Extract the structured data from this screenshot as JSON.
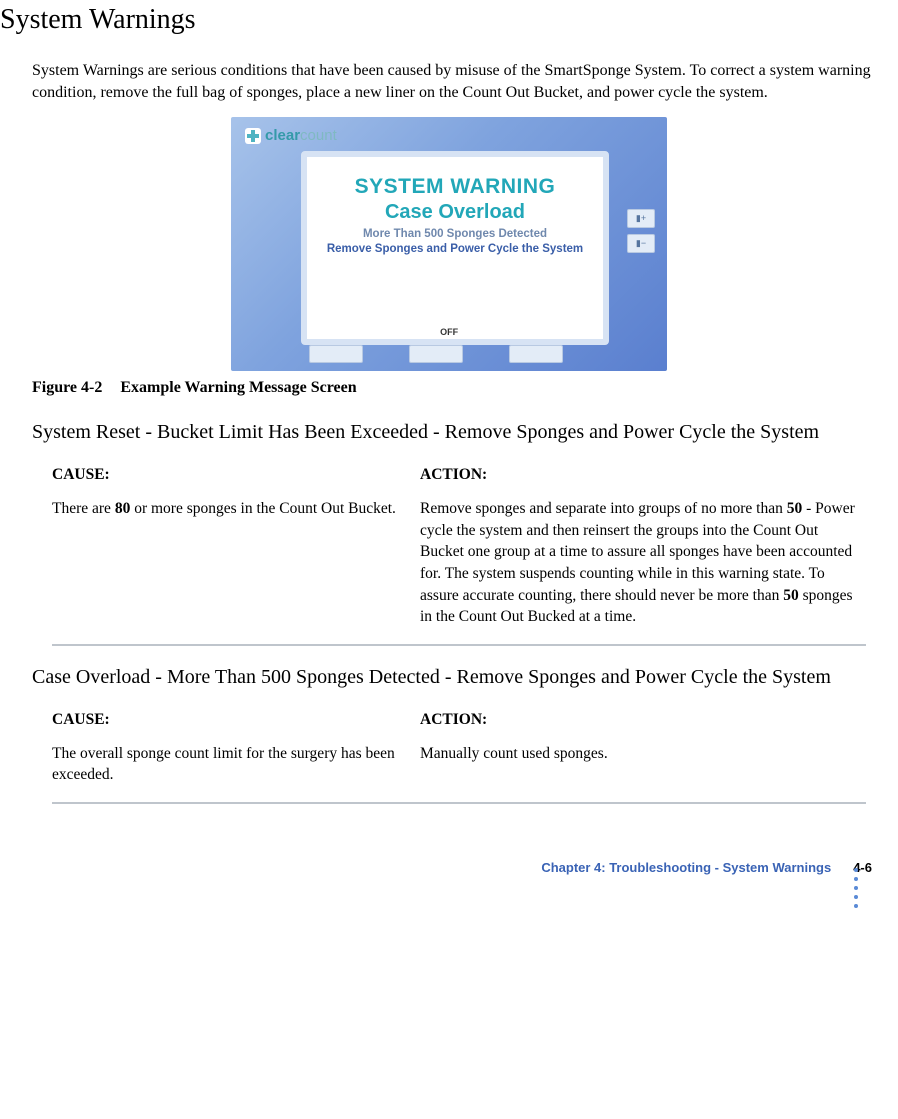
{
  "title": "System Warnings",
  "intro": "System Warnings are serious conditions that have been caused by misuse of the SmartSponge System. To correct a system warning condition, remove the full bag of sponges, place a new liner on the Count Out Bucket, and power cycle the system.",
  "device": {
    "brand_prefix": "clear",
    "brand_suffix": "count",
    "screen_title": "SYSTEM WARNING",
    "screen_sub": "Case Overload",
    "screen_line1": "More Than 500 Sponges Detected",
    "screen_line2": "Remove Sponges and Power Cycle the System",
    "off_label": "OFF",
    "side_btn_up": "▮+",
    "side_btn_dn": "▮−"
  },
  "fig_label": "Figure 4-2",
  "fig_title": "Example Warning Message Screen",
  "sec1_title": "System Reset - Bucket Limit Has Been Exceeded - Remove Sponges and Power Cycle the System",
  "cause_h": "CAUSE:",
  "action_h": "ACTION:",
  "sec1_cause_pre": "There are ",
  "sec1_cause_bold": "80",
  "sec1_cause_post": " or more sponges in the Count Out Bucket.",
  "sec1_action_p1": "Remove sponges and separate into groups of no more than ",
  "sec1_action_b1": "50",
  "sec1_action_p2": " - Power cycle the system and then reinsert the groups into the Count Out Bucket one group at a time to assure all sponges have been accounted for. The system suspends counting while in this warning state. To assure accurate counting, there should never be more than ",
  "sec1_action_b2": "50",
  "sec1_action_p3": " sponges in the Count Out Bucked at a time.",
  "sec2_title": "Case Overload - More Than 500 Sponges Detected - Remove Sponges and Power Cycle the System",
  "sec2_cause": "The overall sponge count limit for the surgery has been exceeded.",
  "sec2_action": "Manually count used sponges.",
  "footer_chapter": "Chapter 4: Troubleshooting - System Warnings",
  "footer_page": "4-6"
}
